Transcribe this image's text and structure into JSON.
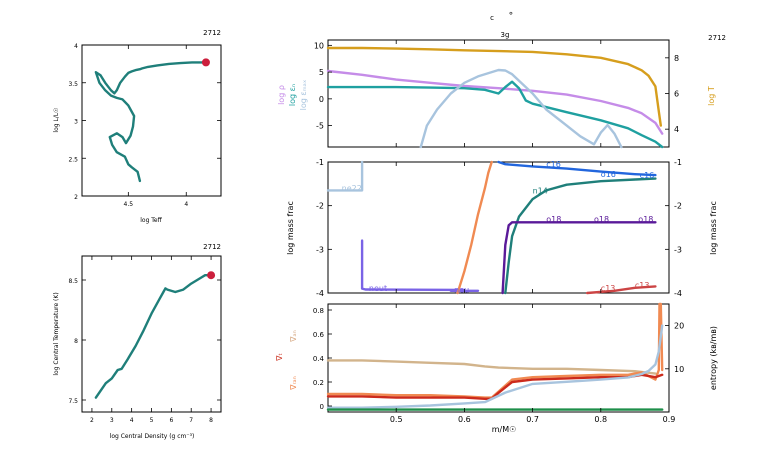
{
  "chart_data": [
    {
      "id": "hr",
      "type": "line",
      "model_number": "2712",
      "xlabel": "log Teff",
      "ylabel": "log L/L☉",
      "xlim": [
        4.9,
        3.7
      ],
      "ylim": [
        2.0,
        4.0
      ],
      "xticks": [
        4.5,
        4.0
      ],
      "yticks": [
        2.0,
        2.5,
        3.0,
        3.5,
        4.0
      ],
      "xtick_labels": [
        "4.5",
        "4"
      ],
      "ytick_labels": [
        "2",
        "2.5",
        "3",
        "3.5",
        "4"
      ],
      "track_color": "#1f7f7a",
      "marker_color": "#cc1f3d",
      "series": [
        {
          "x": [
            4.4,
            4.42,
            4.47,
            4.5,
            4.53,
            4.6,
            4.64,
            4.66,
            4.6,
            4.55,
            4.52,
            4.48,
            4.46,
            4.45,
            4.5,
            4.55,
            4.6,
            4.65,
            4.7,
            4.75,
            4.78,
            4.74,
            4.7,
            4.65,
            4.62,
            4.6,
            4.57,
            4.53,
            4.5,
            4.47,
            4.43,
            4.4,
            4.38,
            4.33,
            4.25,
            4.15,
            4.05,
            3.95,
            3.88,
            3.83
          ],
          "y": [
            2.2,
            2.32,
            2.38,
            2.42,
            2.52,
            2.58,
            2.68,
            2.78,
            2.83,
            2.78,
            2.7,
            2.8,
            2.92,
            3.06,
            3.2,
            3.28,
            3.3,
            3.33,
            3.4,
            3.5,
            3.64,
            3.6,
            3.5,
            3.4,
            3.36,
            3.4,
            3.5,
            3.58,
            3.63,
            3.65,
            3.67,
            3.68,
            3.69,
            3.71,
            3.73,
            3.75,
            3.76,
            3.77,
            3.77,
            3.77
          ]
        }
      ],
      "marker": {
        "x": 3.83,
        "y": 3.77
      }
    },
    {
      "id": "rhoT",
      "type": "line",
      "model_number": "2712",
      "xlabel": "log Central Density (g cm⁻³)",
      "ylabel": "log Central Temperature (K)",
      "xlim": [
        1.5,
        8.5
      ],
      "ylim": [
        7.4,
        8.7
      ],
      "xticks": [
        2,
        3,
        4,
        5,
        6,
        7,
        8
      ],
      "yticks": [
        7.5,
        8.0,
        8.5
      ],
      "xtick_labels": [
        "2",
        "3",
        "4",
        "5",
        "6",
        "7",
        "8"
      ],
      "ytick_labels": [
        "7.5",
        "8",
        "8.5"
      ],
      "track_color": "#1f7f7a",
      "marker_color": "#cc1f3d",
      "series": [
        {
          "x": [
            2.2,
            2.7,
            3.0,
            3.3,
            3.5,
            3.8,
            4.2,
            4.6,
            5.0,
            5.4,
            5.6,
            5.7,
            5.8,
            6.2,
            6.6,
            7.0,
            7.3,
            7.5,
            7.7,
            8.0
          ],
          "y": [
            7.52,
            7.64,
            7.68,
            7.75,
            7.76,
            7.84,
            7.95,
            8.08,
            8.22,
            8.34,
            8.4,
            8.43,
            8.42,
            8.4,
            8.42,
            8.47,
            8.5,
            8.52,
            8.54,
            8.54
          ]
        }
      ],
      "marker": {
        "x": 8.0,
        "y": 8.54
      }
    },
    {
      "id": "profile-top",
      "type": "line",
      "header_c": "c",
      "header_circle": "∘",
      "header_model_label": "3g",
      "model_number": "2712",
      "xlim": [
        0.4,
        0.9
      ],
      "ylim_left": [
        -9,
        11
      ],
      "yticks_left": [
        -5,
        0,
        5,
        10
      ],
      "ytick_labels_left": [
        "-5",
        "0",
        "5",
        "10"
      ],
      "ylim_right": [
        3,
        9
      ],
      "yticks_right": [
        4,
        6,
        8
      ],
      "ytick_labels_right": [
        "4",
        "6",
        "8"
      ],
      "left_axis_labels": [
        {
          "text": "log ρ",
          "color": "#c58ce8"
        },
        {
          "text": "log εₙ",
          "color": "#1fa0a0"
        },
        {
          "text": "log εₘₐₓ",
          "color": "#a8c4de"
        }
      ],
      "right_axis_label": {
        "text": "log T",
        "color": "#d69e1d"
      },
      "series": [
        {
          "name": "log T",
          "axis": "right",
          "color": "#d69e1d",
          "x": [
            0.4,
            0.45,
            0.5,
            0.55,
            0.6,
            0.65,
            0.7,
            0.75,
            0.8,
            0.84,
            0.86,
            0.87,
            0.88,
            0.885,
            0.888
          ],
          "y": [
            8.55,
            8.55,
            8.52,
            8.48,
            8.42,
            8.38,
            8.33,
            8.2,
            8.0,
            7.65,
            7.3,
            7.0,
            6.4,
            5.0,
            4.2
          ]
        },
        {
          "name": "log rho",
          "axis": "left",
          "color": "#c58ce8",
          "x": [
            0.4,
            0.45,
            0.5,
            0.55,
            0.6,
            0.65,
            0.7,
            0.75,
            0.8,
            0.84,
            0.86,
            0.88,
            0.89
          ],
          "y": [
            5.2,
            4.5,
            3.6,
            3.0,
            2.4,
            2.0,
            1.5,
            0.8,
            -0.4,
            -1.7,
            -2.7,
            -4.5,
            -6.5
          ]
        },
        {
          "name": "log eps_nuc",
          "axis": "left",
          "color": "#1fa0a0",
          "x": [
            0.4,
            0.45,
            0.5,
            0.55,
            0.6,
            0.63,
            0.65,
            0.66,
            0.67,
            0.68,
            0.69,
            0.7,
            0.75,
            0.8,
            0.84,
            0.86,
            0.88,
            0.89
          ],
          "y": [
            2.2,
            2.2,
            2.2,
            2.1,
            2.0,
            1.7,
            1.0,
            2.2,
            3.2,
            2.0,
            -0.3,
            -0.9,
            -2.5,
            -4.0,
            -5.5,
            -6.8,
            -8.0,
            -9.0
          ]
        },
        {
          "name": "log eps_max",
          "axis": "left",
          "color": "#a8c4de",
          "x": [
            0.536,
            0.545,
            0.56,
            0.58,
            0.6,
            0.62,
            0.64,
            0.65,
            0.66,
            0.67,
            0.68,
            0.7,
            0.72,
            0.75,
            0.77,
            0.79,
            0.8,
            0.81,
            0.82,
            0.83
          ],
          "y": [
            -9,
            -5,
            -2,
            1,
            3,
            4.2,
            5.0,
            5.4,
            5.3,
            4.6,
            3.4,
            1,
            -2,
            -5,
            -7,
            -8.5,
            -6.3,
            -4.9,
            -6.5,
            -9
          ]
        }
      ]
    },
    {
      "id": "profile-abund",
      "type": "line",
      "xlim": [
        0.4,
        0.9
      ],
      "ylim": [
        -4,
        -1
      ],
      "yticks": [
        -4,
        -3,
        -2,
        -1
      ],
      "ytick_labels": [
        "-4",
        "-3",
        "-2",
        "-1"
      ],
      "ylabel_left": "log mass frac",
      "ylabel_right": "log mass frac",
      "series": [
        {
          "name": "ne22",
          "color": "#a8c4de",
          "x": [
            0.4,
            0.45,
            0.45
          ],
          "y": [
            -1.65,
            -1.65,
            -1.0
          ]
        },
        {
          "name": "neut",
          "color": "#7a63e6",
          "x": [
            0.45,
            0.45,
            0.455,
            0.6
          ],
          "y": [
            -2.8,
            -3.9,
            -3.92,
            -3.93
          ]
        },
        {
          "name": "neu",
          "color": "#7a63e6",
          "x": [
            0.58,
            0.62
          ],
          "y": [
            -3.95,
            -3.95
          ]
        },
        {
          "name": "he4",
          "color": "#f08a52",
          "x": [
            0.59,
            0.6,
            0.61,
            0.62,
            0.63,
            0.635,
            0.64
          ],
          "y": [
            -4.0,
            -3.5,
            -2.9,
            -2.2,
            -1.6,
            -1.25,
            -1.0
          ]
        },
        {
          "name": "c12",
          "color": "#2266dd",
          "x": [
            0.65,
            0.66,
            0.7,
            0.75,
            0.8,
            0.85,
            0.88
          ],
          "y": [
            -1.0,
            -1.05,
            -1.1,
            -1.15,
            -1.22,
            -1.28,
            -1.3
          ]
        },
        {
          "name": "n14",
          "color": "#1f7f7a",
          "x": [
            0.66,
            0.665,
            0.67,
            0.68,
            0.7,
            0.72,
            0.75,
            0.8,
            0.85,
            0.88
          ],
          "y": [
            -4.0,
            -3.3,
            -2.7,
            -2.25,
            -1.85,
            -1.65,
            -1.52,
            -1.44,
            -1.4,
            -1.38
          ]
        },
        {
          "name": "o18",
          "color": "#5a1a99",
          "x": [
            0.656,
            0.66,
            0.665,
            0.67,
            0.7,
            0.8,
            0.88
          ],
          "y": [
            -4.0,
            -2.9,
            -2.45,
            -2.38,
            -2.38,
            -2.38,
            -2.38
          ]
        },
        {
          "name": "c13",
          "color": "#cc4444",
          "x": [
            0.78,
            0.82,
            0.85,
            0.88
          ],
          "y": [
            -4.0,
            -3.95,
            -3.88,
            -3.85
          ]
        }
      ],
      "labels": [
        {
          "text": "ne22",
          "color": "#a8c4de",
          "x": 0.42,
          "y": -1.6
        },
        {
          "text": "neut",
          "color": "#7a63e6",
          "x": 0.46,
          "y": -3.88
        },
        {
          "text": "neu",
          "color": "#7a63e6",
          "x": 0.585,
          "y": -3.92
        },
        {
          "text": "c16",
          "color": "#2266dd",
          "x": 0.72,
          "y": -1.05
        },
        {
          "text": "o16",
          "color": "#2266dd",
          "x": 0.8,
          "y": -1.28
        },
        {
          "text": "c16",
          "color": "#2266dd",
          "x": 0.857,
          "y": -1.3
        },
        {
          "text": "n14",
          "color": "#1f7f7a",
          "x": 0.7,
          "y": -1.65
        },
        {
          "text": "o18",
          "color": "#5a1a99",
          "x": 0.72,
          "y": -2.3
        },
        {
          "text": "o18",
          "color": "#5a1a99",
          "x": 0.79,
          "y": -2.3
        },
        {
          "text": "o18",
          "color": "#5a1a99",
          "x": 0.855,
          "y": -2.3
        },
        {
          "text": "c13",
          "color": "#cc4444",
          "x": 0.8,
          "y": -3.88
        },
        {
          "text": "c13",
          "color": "#cc4444",
          "x": 0.85,
          "y": -3.82
        }
      ]
    },
    {
      "id": "profile-grad",
      "type": "line",
      "xlim": [
        0.4,
        0.9
      ],
      "ylim_left": [
        -0.05,
        0.85
      ],
      "yticks_left": [
        0,
        0.2,
        0.4,
        0.6,
        0.8
      ],
      "ytick_labels_left": [
        "0",
        "0.2",
        "0.4",
        "0.6",
        "0.8"
      ],
      "ylim_right": [
        0,
        25
      ],
      "yticks_right": [
        10,
        20
      ],
      "ytick_labels_right": [
        "10",
        "20"
      ],
      "xticks": [
        0.5,
        0.6,
        0.7,
        0.8,
        0.9
      ],
      "xtick_labels": [
        "0.5",
        "0.6",
        "0.7",
        "0.8",
        "0.9"
      ],
      "xlabel": "m/M☉",
      "left_axis_labels": [
        {
          "text": "∇ₐₙ",
          "color": "#d6a882"
        },
        {
          "text": "∇ₜ",
          "color": "#cc3322"
        },
        {
          "text": "∇ᵣₐₙ",
          "color": "#f08a52"
        }
      ],
      "right_axis_label": {
        "text": "entropy (kʙ/mʙ)",
        "color": "#000000"
      },
      "series": [
        {
          "name": "grad_ad",
          "axis": "left",
          "color": "#d2b48c",
          "x": [
            0.4,
            0.45,
            0.5,
            0.55,
            0.6,
            0.63,
            0.65,
            0.7,
            0.75,
            0.8,
            0.85,
            0.88
          ],
          "y": [
            0.38,
            0.38,
            0.37,
            0.36,
            0.35,
            0.33,
            0.32,
            0.31,
            0.31,
            0.3,
            0.29,
            0.27
          ]
        },
        {
          "name": "grad_rad",
          "axis": "left",
          "color": "#f08a52",
          "x": [
            0.4,
            0.45,
            0.5,
            0.55,
            0.6,
            0.63,
            0.64,
            0.65,
            0.67,
            0.7,
            0.75,
            0.8,
            0.84,
            0.86,
            0.88,
            0.885,
            0.886,
            0.888,
            0.89
          ],
          "y": [
            0.1,
            0.1,
            0.09,
            0.09,
            0.08,
            0.07,
            0.07,
            0.12,
            0.22,
            0.24,
            0.25,
            0.26,
            0.26,
            0.28,
            0.22,
            0.3,
            0.85,
            0.85,
            0.3
          ]
        },
        {
          "name": "grad_T",
          "axis": "left",
          "color": "#cc2a1c",
          "x": [
            0.4,
            0.45,
            0.5,
            0.55,
            0.6,
            0.63,
            0.64,
            0.65,
            0.67,
            0.7,
            0.75,
            0.8,
            0.84,
            0.86,
            0.88,
            0.89
          ],
          "y": [
            0.08,
            0.08,
            0.07,
            0.07,
            0.07,
            0.06,
            0.06,
            0.11,
            0.2,
            0.22,
            0.23,
            0.24,
            0.24,
            0.26,
            0.24,
            0.26
          ]
        },
        {
          "name": "entropy",
          "axis": "right",
          "color": "#a8c4de",
          "x": [
            0.4,
            0.45,
            0.5,
            0.55,
            0.6,
            0.63,
            0.66,
            0.7,
            0.75,
            0.8,
            0.84,
            0.86,
            0.87,
            0.88,
            0.885,
            0.89
          ],
          "y": [
            1.0,
            1.0,
            1.2,
            1.5,
            2.0,
            2.3,
            4.5,
            6.5,
            7.0,
            7.5,
            8.0,
            8.8,
            9.5,
            11.0,
            14.0,
            20.0
          ]
        },
        {
          "name": "zero",
          "axis": "left",
          "color": "#1f8f4a",
          "x": [
            0.4,
            0.89
          ],
          "y": [
            -0.03,
            -0.03
          ]
        }
      ]
    }
  ]
}
